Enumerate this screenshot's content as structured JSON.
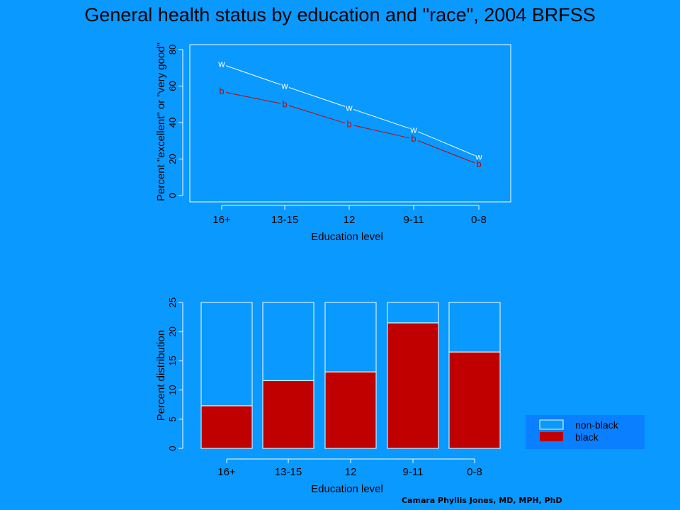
{
  "slide": {
    "title": "General health status by education and \"race\", 2004 BRFSS",
    "credit": "Camara Phyllis Jones, MD, MPH, PhD"
  },
  "colors": {
    "background": "#0a99ff",
    "white_series": "#ffffff",
    "black_series": "#c00000",
    "legend_box": "#0a7fff"
  },
  "chart_data": [
    {
      "type": "line",
      "categories": [
        "16+",
        "13-15",
        "12",
        "9-11",
        "0-8"
      ],
      "xlabel": "Education level",
      "ylabel": "Percent \"excellent\" or \"very good\"",
      "ylim": [
        0,
        80
      ],
      "yticks": [
        0,
        20,
        40,
        60,
        80
      ],
      "series": [
        {
          "marker": "w",
          "color": "#ffffff",
          "values": [
            72,
            60,
            48,
            36,
            21
          ]
        },
        {
          "marker": "b",
          "color": "#c00000",
          "values": [
            57,
            50,
            39,
            31,
            17
          ]
        }
      ]
    },
    {
      "type": "bar",
      "stacked": true,
      "categories": [
        "16+",
        "13-15",
        "12",
        "9-11",
        "0-8"
      ],
      "xlabel": "Education level",
      "ylabel": "Percent distribution",
      "ylim": [
        0,
        25
      ],
      "yticks": [
        0,
        5,
        10,
        15,
        20,
        25
      ],
      "series": [
        {
          "name": "black",
          "color": "#c00000",
          "values": [
            7.3,
            11.6,
            13.1,
            21.5,
            16.5
          ]
        },
        {
          "name": "non-black",
          "color": "#0a99ff",
          "values": [
            17.7,
            13.4,
            11.9,
            3.5,
            8.5
          ]
        }
      ],
      "legend": {
        "position": "bottom-right",
        "entries": [
          "non-black",
          "black"
        ]
      }
    }
  ]
}
